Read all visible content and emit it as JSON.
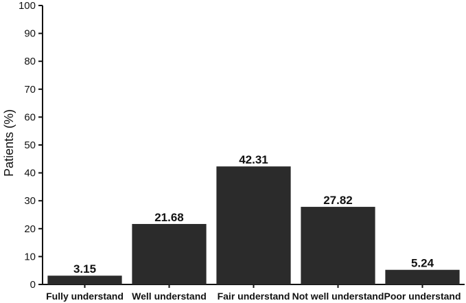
{
  "chart_data": {
    "type": "bar",
    "categories": [
      "Fully understand",
      "Well understand",
      "Fair understand",
      "Not well understand",
      "Poor understand"
    ],
    "values": [
      3.15,
      21.68,
      42.31,
      27.82,
      5.24
    ],
    "data_labels": [
      "3.15",
      "21.68",
      "42.31",
      "27.82",
      "5.24"
    ],
    "title": "",
    "xlabel": "",
    "ylabel": "Patients (%)",
    "ylim": [
      0,
      100
    ],
    "yticks": [
      0,
      10,
      20,
      30,
      40,
      50,
      60,
      70,
      80,
      90,
      100
    ],
    "grid": false,
    "bar_color": "#2b2b2b",
    "axis_color": "#111111"
  }
}
